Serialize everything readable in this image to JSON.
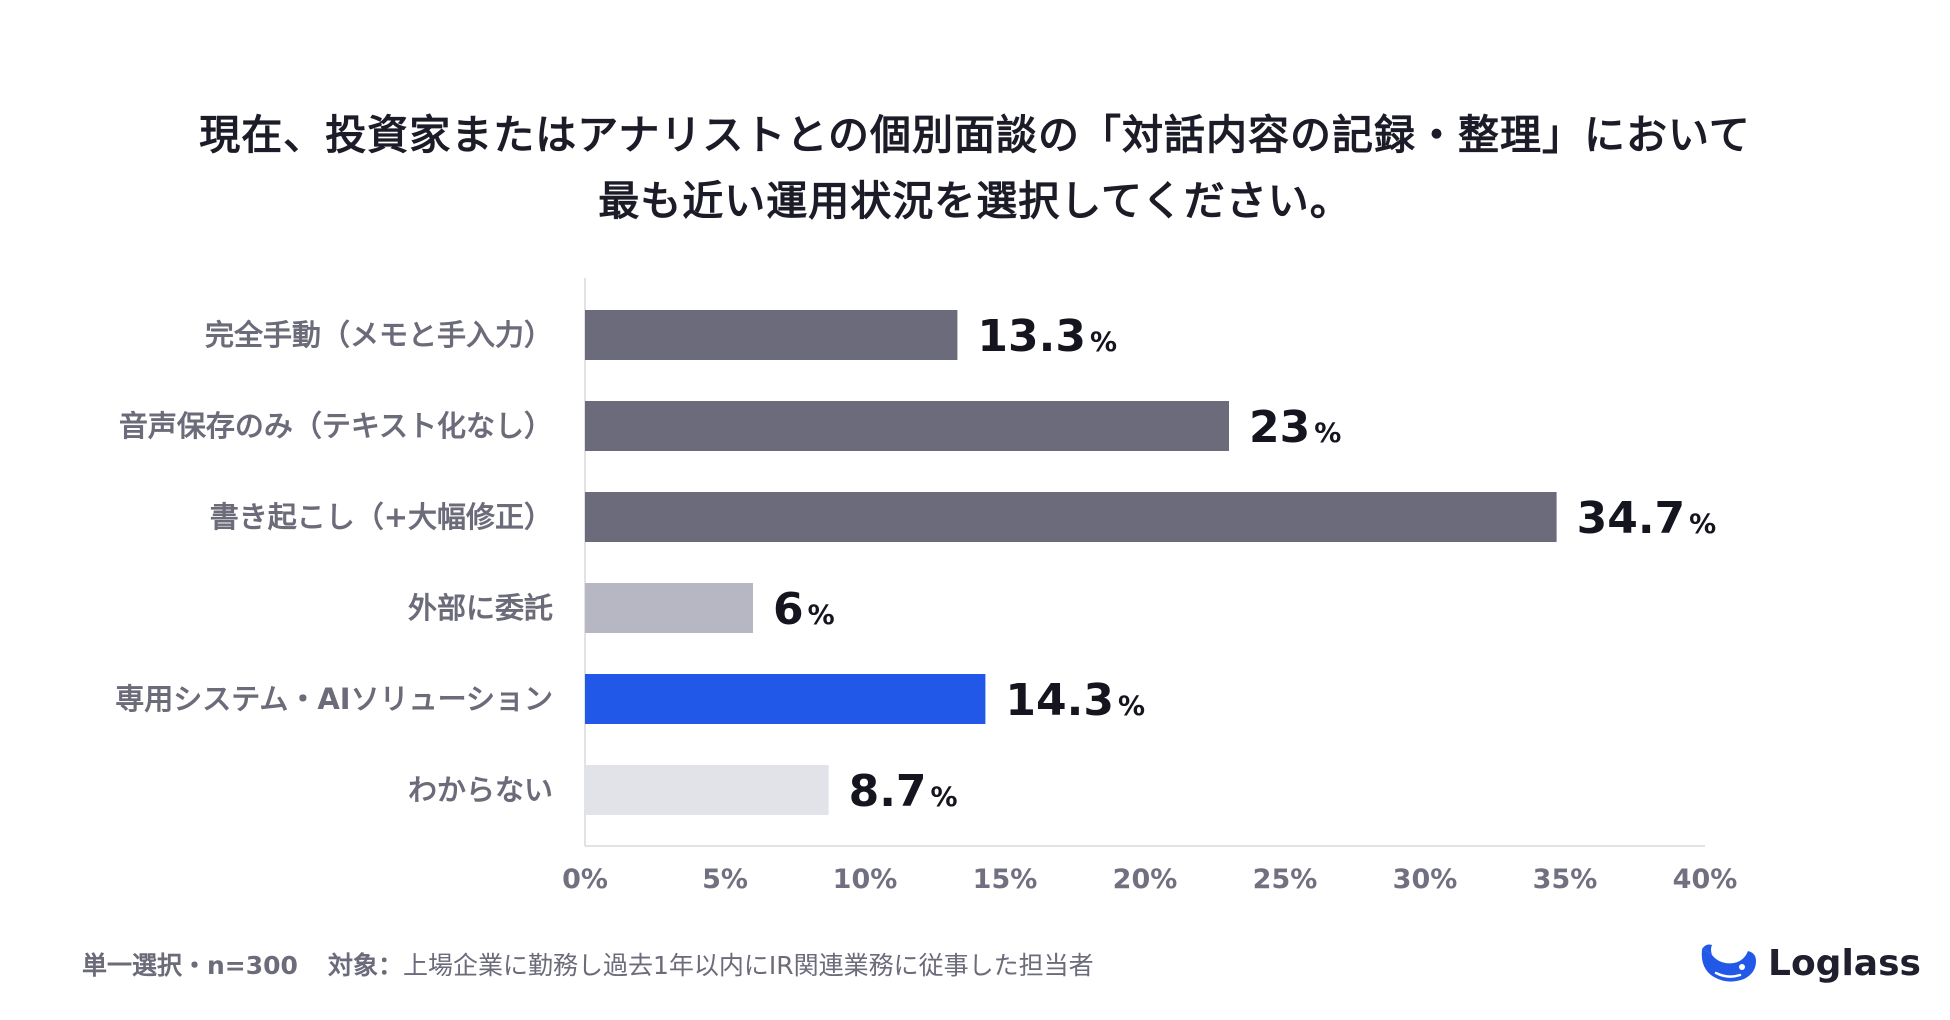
{
  "title": {
    "line1": "現在、投資家またはアナリストとの個別面談の「対話内容の記録・整理」において",
    "line2": "最も近い運用状況を選択してください。"
  },
  "chart_data": {
    "type": "bar",
    "orientation": "horizontal",
    "categories": [
      "完全手動（メモと手入力）",
      "音声保存のみ（テキスト化なし）",
      "書き起こし（+大幅修正）",
      "外部に委託",
      "専用システム・AIソリューション",
      "わからない"
    ],
    "values": [
      13.3,
      23,
      34.7,
      6,
      14.3,
      8.7
    ],
    "value_labels": [
      "13.3",
      "23",
      "34.7",
      "6",
      "14.3",
      "8.7"
    ],
    "value_unit": "%",
    "colors": [
      "#6b6b7b",
      "#6b6b7b",
      "#6b6b7b",
      "#b7b7c3",
      "#2158e8",
      "#e2e2e9"
    ],
    "xlim": [
      0,
      40
    ],
    "xticks": [
      "0%",
      "5%",
      "10%",
      "15%",
      "20%",
      "25%",
      "30%",
      "35%",
      "40%"
    ],
    "grid": false
  },
  "footer": {
    "selection": "単一選択・n=300",
    "target_label": "対象：",
    "target_text": "上場企業に勤務し過去1年以内にIR関連業務に従事した担当者"
  },
  "logo": {
    "text": "Loglass",
    "icon": "whale-icon",
    "color": "#2158e8"
  }
}
